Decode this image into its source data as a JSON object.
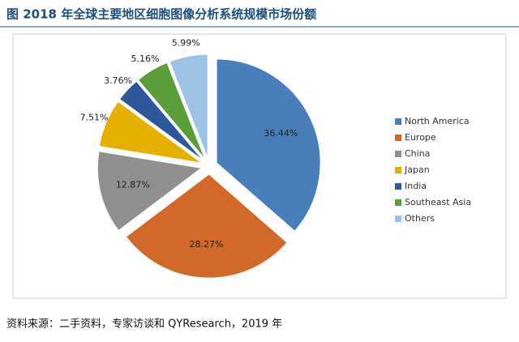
{
  "chart_data": {
    "type": "pie",
    "title": "图 2018 年全球主要地区细胞图像分析系统规模市场份额",
    "source": "资料来源：二手资料，专家访谈和 QYResearch，2019 年",
    "categories": [
      "North America",
      "Europe",
      "China",
      "Japan",
      "India",
      "Southeast Asia",
      "Others"
    ],
    "values": [
      36.44,
      28.27,
      12.87,
      7.51,
      3.76,
      5.16,
      5.99
    ],
    "value_labels": [
      "36.44%",
      "28.27%",
      "12.87%",
      "7.51%",
      "3.76%",
      "5.16%",
      "5.99%"
    ],
    "colors": [
      "#4a7ebb",
      "#d2692a",
      "#8f8f8f",
      "#e5b000",
      "#2f559b",
      "#5a9d3a",
      "#9cc3e6"
    ],
    "legend": "right"
  }
}
